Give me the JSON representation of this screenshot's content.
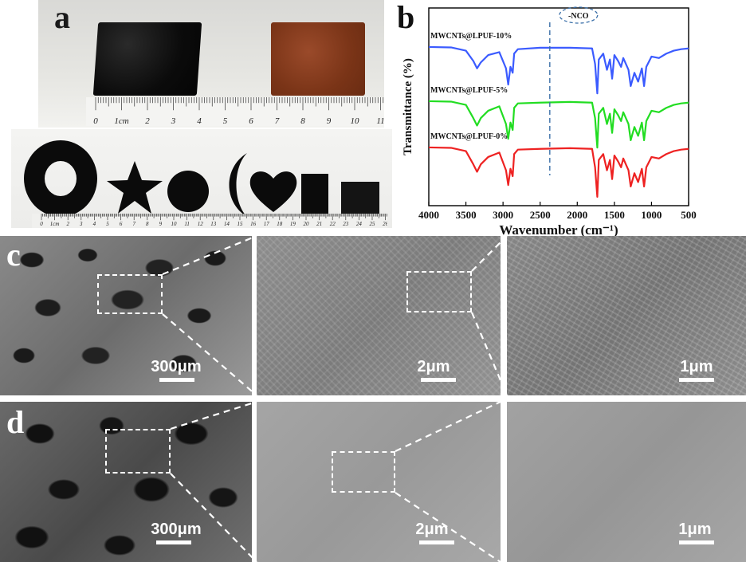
{
  "panel_a": {
    "letter": "a",
    "ruler_labels": [
      "0",
      "1cm",
      "2",
      "3",
      "4",
      "5",
      "6",
      "7",
      "8",
      "9",
      "10",
      "11"
    ],
    "ruler2_labels": [
      "0",
      "1cm",
      "2",
      "3",
      "4",
      "5",
      "6",
      "7",
      "8",
      "9",
      "10",
      "11",
      "12",
      "13",
      "14",
      "15",
      "16",
      "17",
      "18",
      "19",
      "20",
      "21",
      "22",
      "23",
      "24",
      "25",
      "26"
    ]
  },
  "panel_b": {
    "letter": "b",
    "annotation": "-NCO"
  },
  "panel_c": {
    "letter": "c",
    "scale_labels": [
      "300μm",
      "2μm",
      "1μm"
    ]
  },
  "panel_d": {
    "letter": "d",
    "scale_labels": [
      "300μm",
      "2μm",
      "1μm"
    ]
  },
  "chart_data": {
    "type": "line",
    "title": "",
    "xlabel": "Wavenumber (cm⁻¹)",
    "ylabel": "Transmittance (%)",
    "xlim": [
      4000,
      500
    ],
    "x_ticks": [
      4000,
      3500,
      3000,
      2500,
      2000,
      1500,
      1000,
      500
    ],
    "grid": false,
    "annotation": "-NCO",
    "annotation_x": 2370,
    "series": [
      {
        "name": "MWCNTs@LPUF-10%",
        "color": "#3b5bff",
        "x": [
          4000,
          3700,
          3500,
          3400,
          3350,
          3300,
          3200,
          3050,
          2960,
          2930,
          2900,
          2870,
          2850,
          2800,
          2500,
          2100,
          1800,
          1760,
          1730,
          1710,
          1650,
          1600,
          1560,
          1530,
          1500,
          1450,
          1410,
          1380,
          1310,
          1280,
          1230,
          1180,
          1130,
          1100,
          1070,
          1000,
          900,
          800,
          700,
          600,
          500
        ],
        "y": [
          0.5,
          0.8,
          3,
          10,
          15,
          11,
          6,
          4,
          15,
          26,
          14,
          18,
          5,
          2,
          1,
          1,
          1.5,
          12,
          32,
          9,
          5,
          16,
          9,
          22,
          6,
          10,
          14,
          8,
          16,
          27,
          18,
          24,
          15,
          27,
          14,
          7,
          8,
          5,
          3,
          2,
          1.5
        ]
      },
      {
        "name": "MWCNTs@LPUF-5%",
        "color": "#22dd22",
        "x": [
          4000,
          3700,
          3500,
          3400,
          3350,
          3300,
          3200,
          3050,
          2960,
          2930,
          2900,
          2870,
          2850,
          2800,
          2500,
          2100,
          1800,
          1760,
          1730,
          1710,
          1650,
          1600,
          1560,
          1530,
          1500,
          1450,
          1410,
          1380,
          1310,
          1280,
          1230,
          1180,
          1130,
          1100,
          1070,
          1000,
          900,
          800,
          700,
          600,
          500
        ],
        "y": [
          0.5,
          0.8,
          3,
          12,
          17,
          12,
          7,
          4,
          16,
          26,
          15,
          20,
          5,
          2,
          1.5,
          1,
          1.5,
          12,
          32,
          9,
          5,
          16,
          9,
          22,
          6,
          10,
          14,
          8,
          16,
          27,
          18,
          24,
          15,
          27,
          14,
          7,
          8,
          5,
          3,
          2,
          1.5
        ]
      },
      {
        "name": "MWCNTs@LPUF-0%",
        "color": "#ee2222",
        "x": [
          4000,
          3700,
          3500,
          3400,
          3350,
          3300,
          3200,
          3050,
          2960,
          2930,
          2900,
          2870,
          2850,
          2800,
          2500,
          2100,
          1800,
          1760,
          1730,
          1710,
          1650,
          1600,
          1560,
          1530,
          1500,
          1450,
          1410,
          1380,
          1310,
          1280,
          1230,
          1180,
          1130,
          1100,
          1070,
          1000,
          900,
          800,
          700,
          600,
          500
        ],
        "y": [
          0.5,
          0.8,
          3,
          12,
          17,
          12,
          7,
          4,
          16,
          26,
          15,
          20,
          5,
          2,
          1.5,
          1,
          1.5,
          14,
          34,
          9,
          5,
          16,
          9,
          22,
          6,
          10,
          14,
          8,
          16,
          27,
          18,
          24,
          15,
          27,
          14,
          7,
          8,
          5,
          3,
          2,
          1.5
        ]
      }
    ]
  }
}
